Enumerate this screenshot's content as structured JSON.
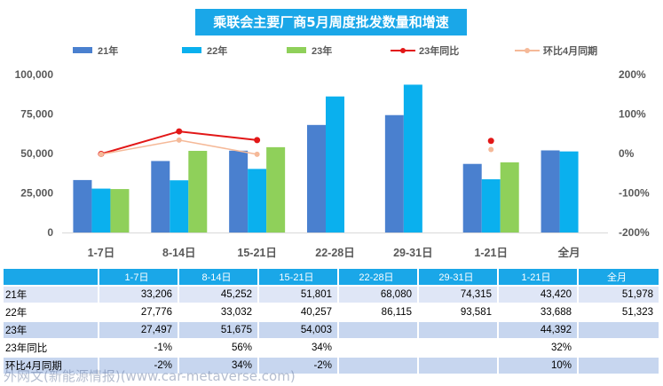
{
  "title": "乘联会主要厂商5月周度批发数量和增速",
  "watermark": "外网文(新能源情报)(www.car-metaverse.com)",
  "colors": {
    "y21": "#4a80cf",
    "y22": "#0ab0ee",
    "y23": "#8fd05a",
    "yoy23": "#e21717",
    "mom": "#f5b998"
  },
  "chart_data": {
    "type": "bar",
    "categories": [
      "1-7日",
      "8-14日",
      "15-21日",
      "22-28日",
      "29-31日",
      "1-21日",
      "全月"
    ],
    "series": [
      {
        "name": "21年",
        "values": [
          33206,
          45252,
          51801,
          68080,
          74315,
          43420,
          51978
        ]
      },
      {
        "name": "22年",
        "values": [
          27776,
          33032,
          40257,
          86115,
          93581,
          33688,
          51323
        ]
      },
      {
        "name": "23年",
        "values": [
          27497,
          51675,
          54003,
          null,
          null,
          44392,
          null
        ]
      }
    ],
    "line_series": [
      {
        "name": "23年同比",
        "axis": "right",
        "values": [
          -1,
          56,
          34,
          null,
          null,
          32,
          null
        ]
      },
      {
        "name": "环比4月同期",
        "axis": "right",
        "values": [
          -2,
          34,
          -2,
          null,
          null,
          10,
          null
        ]
      }
    ],
    "left_axis": {
      "ylim": [
        0,
        100000
      ],
      "ticks": [
        "0",
        "25,000",
        "50,000",
        "75,000",
        "100,000"
      ]
    },
    "right_axis": {
      "ylim": [
        -200,
        200
      ],
      "ticks": [
        "-200%",
        "-100%",
        "0%",
        "100%",
        "200%"
      ]
    },
    "legend_position": "top"
  },
  "table": {
    "header": [
      "",
      "1-7日",
      "8-14日",
      "15-21日",
      "22-28日",
      "29-31日",
      "1-21日",
      "全月"
    ],
    "rows": [
      [
        "21年",
        "33,206",
        "45,252",
        "51,801",
        "68,080",
        "74,315",
        "43,420",
        "51,978"
      ],
      [
        "22年",
        "27,776",
        "33,032",
        "40,257",
        "86,115",
        "93,581",
        "33,688",
        "51,323"
      ],
      [
        "23年",
        "27,497",
        "51,675",
        "54,003",
        "",
        "",
        "44,392",
        ""
      ],
      [
        "23年同比",
        "-1%",
        "56%",
        "34%",
        "",
        "",
        "32%",
        ""
      ],
      [
        "环比4月同期",
        "-2%",
        "34%",
        "-2%",
        "",
        "",
        "10%",
        ""
      ]
    ]
  }
}
